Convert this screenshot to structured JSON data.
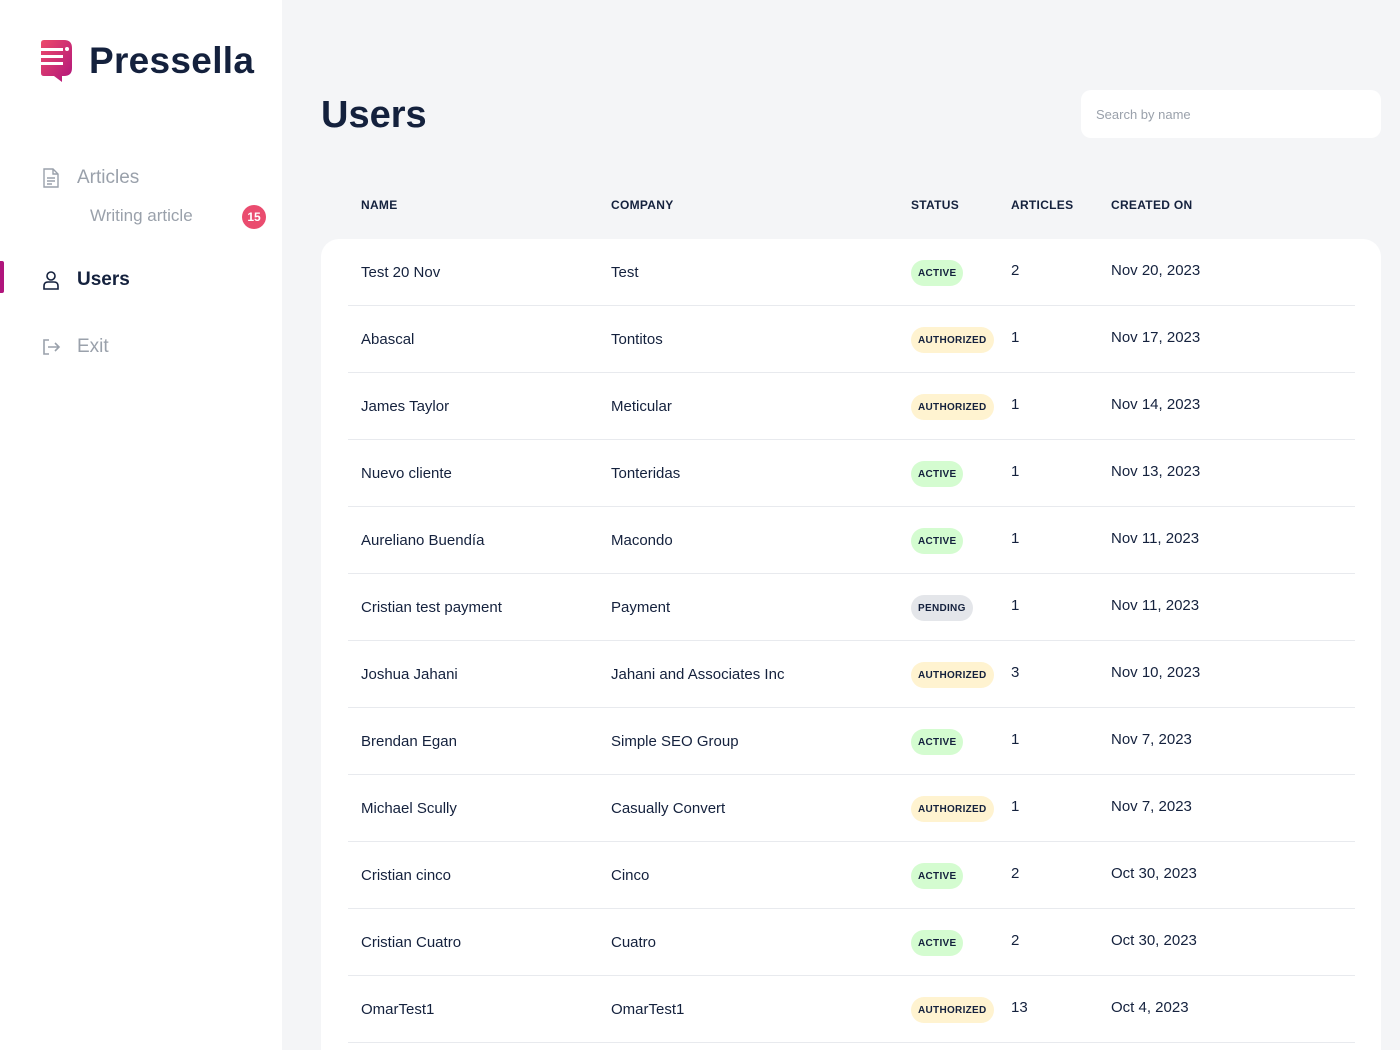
{
  "brand": {
    "name": "Pressella"
  },
  "sidebar": {
    "items": [
      {
        "label": "Articles",
        "icon": "document-icon"
      },
      {
        "label": "Users",
        "icon": "user-icon",
        "active": true
      },
      {
        "label": "Exit",
        "icon": "logout-icon"
      }
    ],
    "sub_item": {
      "label": "Writing article",
      "badge": "15"
    }
  },
  "main": {
    "title": "Users",
    "search": {
      "placeholder": "Search by name",
      "value": ""
    },
    "columns": [
      "NAME",
      "COMPANY",
      "STATUS",
      "ARTICLES",
      "CREATED ON"
    ],
    "rows": [
      {
        "name": "Test 20 Nov",
        "company": "Test",
        "status": "ACTIVE",
        "articles": "2",
        "created": "Nov 20, 2023"
      },
      {
        "name": "Abascal",
        "company": "Tontitos",
        "status": "AUTHORIZED",
        "articles": "1",
        "created": "Nov 17, 2023"
      },
      {
        "name": "James Taylor",
        "company": "Meticular",
        "status": "AUTHORIZED",
        "articles": "1",
        "created": "Nov 14, 2023"
      },
      {
        "name": "Nuevo cliente",
        "company": "Tonteridas",
        "status": "ACTIVE",
        "articles": "1",
        "created": "Nov 13, 2023"
      },
      {
        "name": "Aureliano Buendía",
        "company": "Macondo",
        "status": "ACTIVE",
        "articles": "1",
        "created": "Nov 11, 2023"
      },
      {
        "name": "Cristian test payment",
        "company": "Payment",
        "status": "PENDING",
        "articles": "1",
        "created": "Nov 11, 2023"
      },
      {
        "name": "Joshua Jahani",
        "company": "Jahani and Associates Inc",
        "status": "AUTHORIZED",
        "articles": "3",
        "created": "Nov 10, 2023"
      },
      {
        "name": "Brendan Egan",
        "company": "Simple SEO Group",
        "status": "ACTIVE",
        "articles": "1",
        "created": "Nov 7, 2023"
      },
      {
        "name": "Michael Scully",
        "company": "Casually Convert",
        "status": "AUTHORIZED",
        "articles": "1",
        "created": "Nov 7, 2023"
      },
      {
        "name": "Cristian cinco",
        "company": "Cinco",
        "status": "ACTIVE",
        "articles": "2",
        "created": "Oct 30, 2023"
      },
      {
        "name": "Cristian Cuatro",
        "company": "Cuatro",
        "status": "ACTIVE",
        "articles": "2",
        "created": "Oct 30, 2023"
      },
      {
        "name": "OmarTest1",
        "company": "OmarTest1",
        "status": "AUTHORIZED",
        "articles": "13",
        "created": "Oct 4, 2023"
      }
    ]
  },
  "colors": {
    "accent": "#b0157c",
    "badge": "#ea4c6f",
    "text": "#14213d",
    "muted": "#9aa1ab",
    "status_active": "#d4fcd0",
    "status_authorized": "#fff3d0",
    "status_pending": "#e4e6ea"
  }
}
